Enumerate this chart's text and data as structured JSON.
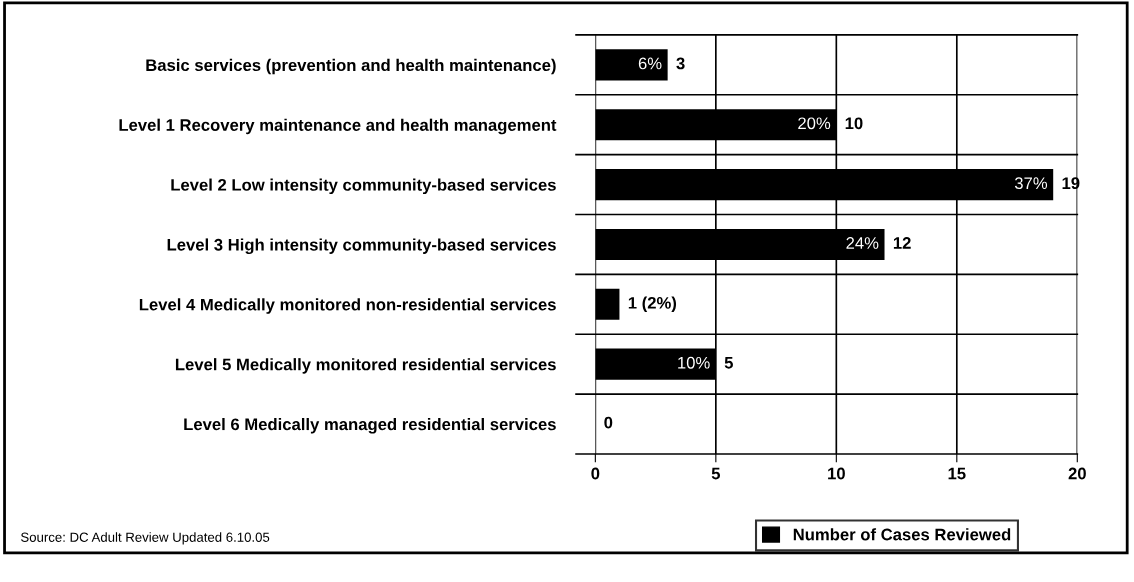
{
  "chart_data": {
    "type": "bar",
    "orientation": "horizontal",
    "categories": [
      "Basic services (prevention and health maintenance)",
      "Level 1 Recovery maintenance and health management",
      "Level 2 Low intensity community-based services",
      "Level 3 High intensity community-based services",
      "Level 4 Medically monitored non-residential services",
      "Level 5 Medically monitored residential services",
      "Level 6 Medically managed residential services"
    ],
    "series": [
      {
        "name": "Number of Cases Reviewed",
        "color": "#000000",
        "values": [
          3,
          10,
          19,
          12,
          1,
          5,
          0
        ],
        "value_labels": [
          "3",
          "10",
          "19",
          "12",
          "1 (2%)",
          "5",
          "0"
        ]
      }
    ],
    "xlim": [
      0,
      20
    ],
    "xticks": [
      0,
      5,
      10,
      15,
      20
    ],
    "grid": true,
    "legend": "bottom right",
    "annotations": [
      {
        "text": "6%",
        "x": 3,
        "y": "Basic services (prevention and health maintenance)"
      },
      {
        "text": "20%",
        "x": 10,
        "y": "Level 1 Recovery maintenance and health management"
      },
      {
        "text": "37%",
        "x": 19,
        "y": "Level 2 Low intensity community-based services"
      },
      {
        "text": "24%",
        "x": 12,
        "y": "Level 3 High intensity community-based services"
      },
      {
        "text": "10%",
        "x": 5,
        "y": "Level 5 Medically monitored residential services"
      },
      "Source: DC Adult Review Updated 6.10.05"
    ]
  }
}
